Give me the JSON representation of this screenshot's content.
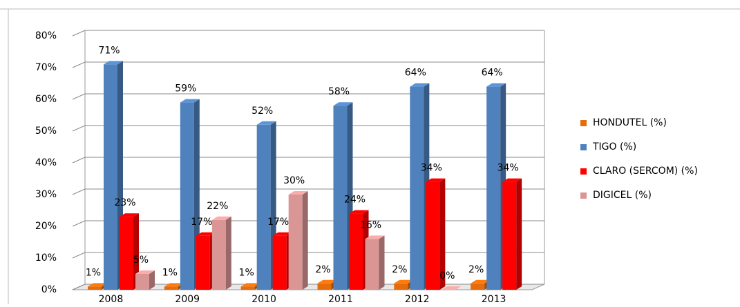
{
  "chart_data": {
    "type": "bar3d",
    "categories": [
      "2008",
      "2009",
      "2010",
      "2011",
      "2012",
      "2013"
    ],
    "series": [
      {
        "name": "HONDUTEL (%)",
        "color": "#e46c0a",
        "values": [
          1,
          1,
          1,
          2,
          2,
          2
        ],
        "value_labels": [
          "1%",
          "1%",
          "1%",
          "2%",
          "2%",
          "2%"
        ]
      },
      {
        "name": "TIGO (%)",
        "color": "#4f81bd",
        "values": [
          71,
          59,
          52,
          58,
          64,
          64
        ],
        "value_labels": [
          "71%",
          "59%",
          "52%",
          "58%",
          "64%",
          "64%"
        ]
      },
      {
        "name": "CLARO (SERCOM)  (%)",
        "color": "#ff0000",
        "values": [
          23,
          17,
          17,
          24,
          34,
          34
        ],
        "value_labels": [
          "23%",
          "17%",
          "17%",
          "24%",
          "34%",
          "34%"
        ]
      },
      {
        "name": "DIGICEL (%)",
        "color": "#d99694",
        "values": [
          5,
          22,
          30,
          16,
          0,
          null
        ],
        "value_labels": [
          "5%",
          "22%",
          "30%",
          "16%",
          "0%",
          null
        ]
      }
    ],
    "ylim": [
      0,
      80
    ],
    "yticks": [
      {
        "value": 0,
        "label": "0%"
      },
      {
        "value": 10,
        "label": "10%"
      },
      {
        "value": 20,
        "label": "20%"
      },
      {
        "value": 30,
        "label": "30%"
      },
      {
        "value": 40,
        "label": "40%"
      },
      {
        "value": 50,
        "label": "50%"
      },
      {
        "value": 60,
        "label": "60%"
      },
      {
        "value": 70,
        "label": "70%"
      },
      {
        "value": 80,
        "label": "80%"
      }
    ],
    "grid": true,
    "legend": "right"
  }
}
